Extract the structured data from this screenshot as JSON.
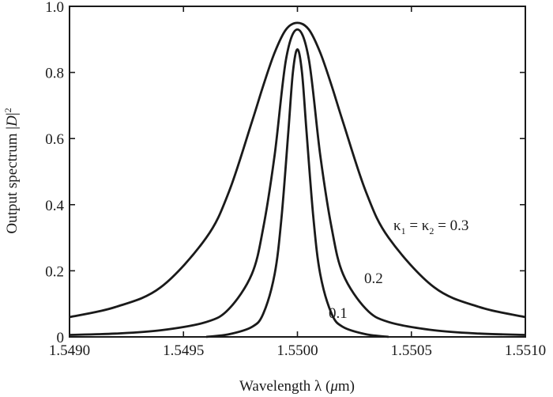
{
  "chart_data": {
    "type": "line",
    "xlabel": "Wavelength λ (μm)",
    "ylabel": "Output spectrum |D|²",
    "xlim": [
      1.549,
      1.551
    ],
    "ylim": [
      0,
      1.0
    ],
    "xticks": [
      "1.5490",
      "1.5495",
      "1.5500",
      "1.5505",
      "1.5510"
    ],
    "xtick_values": [
      1.549,
      1.5495,
      1.55,
      1.5505,
      1.551
    ],
    "yticks": [
      "0",
      "0.2",
      "0.4",
      "0.6",
      "0.8",
      "1.0"
    ],
    "ytick_values": [
      0,
      0.2,
      0.4,
      0.6,
      0.8,
      1.0
    ],
    "grid": false,
    "series": [
      {
        "name": "κ₁ = κ₂ = 0.3",
        "x": [
          1.549,
          1.5492,
          1.5494,
          1.5496,
          1.5497,
          1.5498,
          1.54985,
          1.5499,
          1.54995,
          1.55,
          1.55005,
          1.5501,
          1.55015,
          1.5502,
          1.5503,
          1.5504,
          1.5506,
          1.5508,
          1.551
        ],
        "y": [
          0.06,
          0.09,
          0.15,
          0.3,
          0.44,
          0.65,
          0.76,
          0.86,
          0.93,
          0.95,
          0.93,
          0.86,
          0.76,
          0.65,
          0.44,
          0.3,
          0.15,
          0.09,
          0.06
        ]
      },
      {
        "name": "0.2",
        "x": [
          1.549,
          1.5492,
          1.5494,
          1.5496,
          1.5497,
          1.5498,
          1.54985,
          1.5499,
          1.54995,
          1.55,
          1.55005,
          1.5501,
          1.55015,
          1.5502,
          1.5503,
          1.5504,
          1.5506,
          1.5508,
          1.551
        ],
        "y": [
          0.006,
          0.01,
          0.02,
          0.045,
          0.085,
          0.19,
          0.33,
          0.55,
          0.84,
          0.93,
          0.84,
          0.55,
          0.33,
          0.19,
          0.085,
          0.045,
          0.02,
          0.01,
          0.006
        ]
      },
      {
        "name": "0.1",
        "x": [
          1.5496,
          1.5497,
          1.5498,
          1.54985,
          1.5499,
          1.54993,
          1.54996,
          1.54998,
          1.55,
          1.55002,
          1.55004,
          1.55007,
          1.5501,
          1.55015,
          1.5502,
          1.5503,
          1.5504
        ],
        "y": [
          0,
          0.008,
          0.03,
          0.07,
          0.19,
          0.36,
          0.62,
          0.8,
          0.87,
          0.8,
          0.62,
          0.36,
          0.19,
          0.07,
          0.03,
          0.008,
          0
        ]
      }
    ]
  }
}
